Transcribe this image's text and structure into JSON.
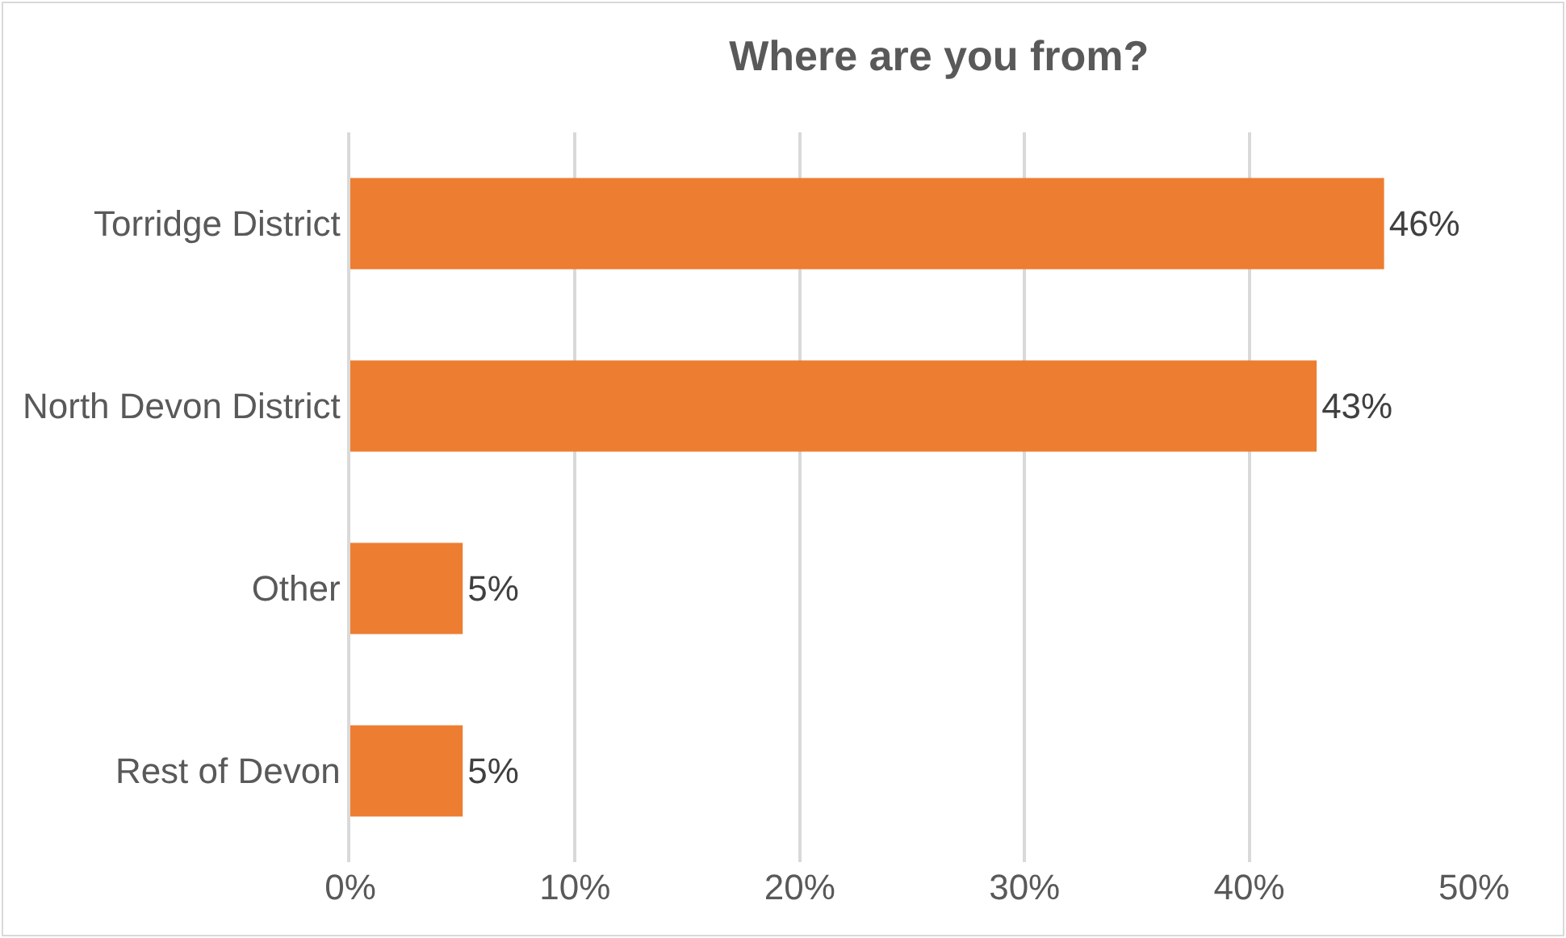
{
  "chart_data": {
    "type": "bar",
    "orientation": "horizontal",
    "title": "Where are you from?",
    "categories": [
      "Torridge District",
      "North Devon District",
      "Other",
      "Rest of Devon"
    ],
    "values": [
      46,
      43,
      5,
      5
    ],
    "value_labels": [
      "46%",
      "43%",
      "5%",
      "5%"
    ],
    "color": "#ed7d31",
    "xlim": [
      0,
      50
    ],
    "xticks": [
      {
        "value": 0,
        "label": "0%"
      },
      {
        "value": 10,
        "label": "10%"
      },
      {
        "value": 20,
        "label": "20%"
      },
      {
        "value": 30,
        "label": "30%"
      },
      {
        "value": 40,
        "label": "40%"
      },
      {
        "value": 50,
        "label": "50%"
      }
    ],
    "grid": "x"
  }
}
